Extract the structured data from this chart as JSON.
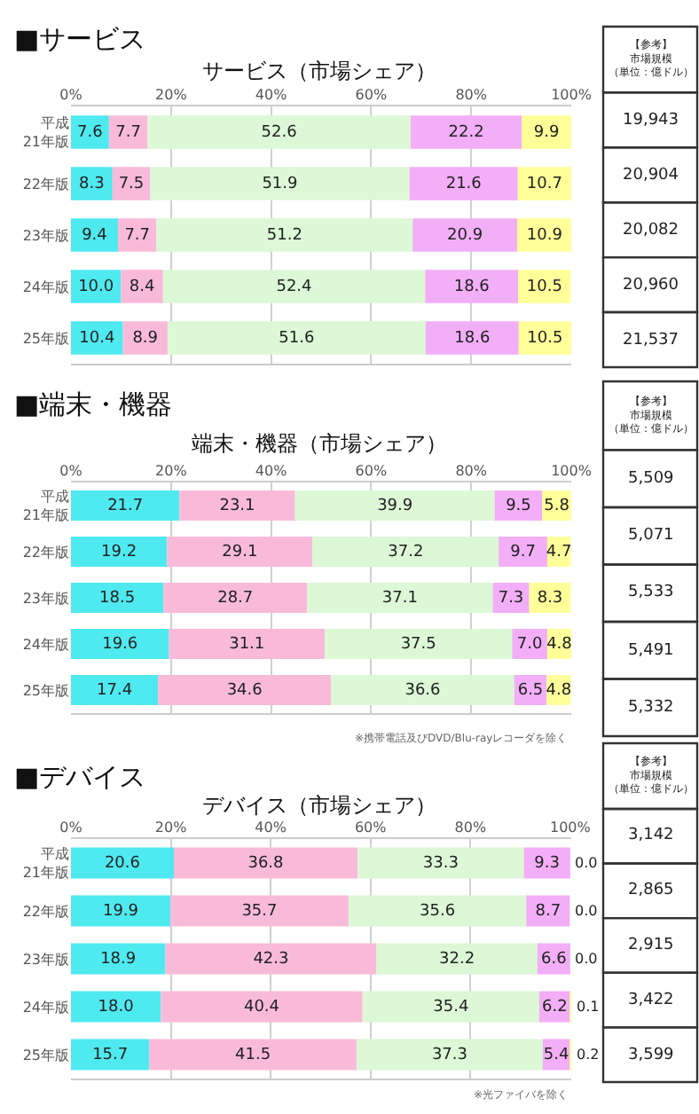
{
  "chart_data": [
    {
      "type": "bar",
      "orientation": "horizontal",
      "stacked": true,
      "title": "■サービス",
      "subtitle": "サービス（市場シェア）",
      "categories": [
        "平成\n21年版",
        "22年版",
        "23年版",
        "24年版",
        "25年版"
      ],
      "series": [
        {
          "color": "#4fe9f0",
          "values": [
            7.6,
            8.3,
            9.4,
            10.0,
            10.4
          ],
          "value_labels": [
            "7.6",
            "8.3",
            "9.4",
            "10.0",
            "10.4"
          ]
        },
        {
          "color": "#f9bada",
          "values": [
            7.7,
            7.5,
            7.7,
            8.4,
            8.9
          ]
        },
        {
          "color": "#dcf8d6",
          "values": [
            52.6,
            51.9,
            51.2,
            52.4,
            51.6
          ]
        },
        {
          "color": "#f2aef6",
          "values": [
            22.2,
            21.6,
            20.9,
            18.6,
            18.6
          ]
        },
        {
          "color": "#ffff99",
          "values": [
            9.9,
            10.7,
            10.9,
            10.5,
            10.5
          ]
        }
      ],
      "xlim": [
        0,
        100
      ],
      "xticks": [
        {
          "value": 0,
          "label": "0%"
        },
        {
          "value": 20,
          "label": "20%"
        },
        {
          "value": 40,
          "label": "40%"
        },
        {
          "value": 60,
          "label": "60%"
        },
        {
          "value": 80,
          "label": "80%"
        },
        {
          "value": 100,
          "label": "100%"
        }
      ],
      "grid": "x",
      "data_labels": true,
      "annotations": [
        "【参考】市場規模（単位：億ドル）",
        "19,943",
        "20,904",
        "20,082",
        "20,960",
        "21,537"
      ]
    },
    {
      "type": "bar",
      "orientation": "horizontal",
      "stacked": true,
      "title": "■端末・機器",
      "subtitle": "端末・機器（市場シェア）",
      "categories": [
        "平成\n21年版",
        "22年版",
        "23年版",
        "24年版",
        "25年版"
      ],
      "series": [
        {
          "color": "#4fe9f0",
          "values": [
            21.7,
            19.2,
            18.5,
            19.6,
            17.4
          ]
        },
        {
          "color": "#f9bada",
          "values": [
            23.1,
            29.1,
            28.7,
            31.1,
            34.6
          ]
        },
        {
          "color": "#dcf8d6",
          "values": [
            39.9,
            37.2,
            37.1,
            37.5,
            36.6
          ]
        },
        {
          "color": "#f2aef6",
          "values": [
            9.5,
            9.7,
            7.3,
            7.0,
            6.5
          ],
          "value_labels": [
            "9.5",
            "9.7",
            "7.3",
            "7.0",
            "6.5"
          ]
        },
        {
          "color": "#ffff99",
          "values": [
            5.8,
            4.7,
            8.3,
            4.8,
            4.8
          ]
        }
      ],
      "xlim": [
        0,
        100
      ],
      "xticks": [
        {
          "value": 0,
          "label": "0%"
        },
        {
          "value": 20,
          "label": "20%"
        },
        {
          "value": 40,
          "label": "40%"
        },
        {
          "value": 60,
          "label": "60%"
        },
        {
          "value": 80,
          "label": "80%"
        },
        {
          "value": 100,
          "label": "100%"
        }
      ],
      "grid": "x",
      "data_labels": true,
      "annotations": [
        "【参考】市場規模（単位：億ドル）",
        "5,509",
        "5,071",
        "5,533",
        "5,491",
        "5,332",
        "※携帯電話及びDVD/Blu-rayレコーダを除く"
      ]
    },
    {
      "type": "bar",
      "orientation": "horizontal",
      "stacked": true,
      "title": "■デバイス",
      "subtitle": "デバイス（市場シェア）",
      "categories": [
        "平成\n21年版",
        "22年版",
        "23年版",
        "24年版",
        "25年版"
      ],
      "series": [
        {
          "color": "#4fe9f0",
          "values": [
            20.6,
            19.9,
            18.9,
            18.0,
            15.7
          ],
          "value_labels": [
            "20.6",
            "19.9",
            "18.9",
            "18.0",
            "15.7"
          ]
        },
        {
          "color": "#f9bada",
          "values": [
            36.8,
            35.7,
            42.3,
            40.4,
            41.5
          ]
        },
        {
          "color": "#dcf8d6",
          "values": [
            33.3,
            35.6,
            32.2,
            35.4,
            37.3
          ]
        },
        {
          "color": "#f2aef6",
          "values": [
            9.3,
            8.7,
            6.6,
            6.2,
            5.4
          ]
        },
        {
          "color": "#ffff99",
          "values": [
            0.0,
            0.0,
            0.0,
            0.1,
            0.2
          ],
          "value_labels": [
            "0.0",
            "0.0",
            "0.0",
            "0.1",
            "0.2"
          ]
        }
      ],
      "xlim": [
        0,
        100.2
      ],
      "xticks": [
        {
          "value": 0,
          "label": "0%"
        },
        {
          "value": 20,
          "label": "20%"
        },
        {
          "value": 40,
          "label": "40%"
        },
        {
          "value": 60,
          "label": "60%"
        },
        {
          "value": 80,
          "label": "80%"
        },
        {
          "value": 100,
          "label": "100%"
        }
      ],
      "grid": "x",
      "data_labels": true,
      "annotations": [
        "【参考】市場規模（単位：億ドル）",
        "3,142",
        "2,865",
        "2,915",
        "3,422",
        "3,599",
        "※光ファイバを除く"
      ]
    }
  ]
}
